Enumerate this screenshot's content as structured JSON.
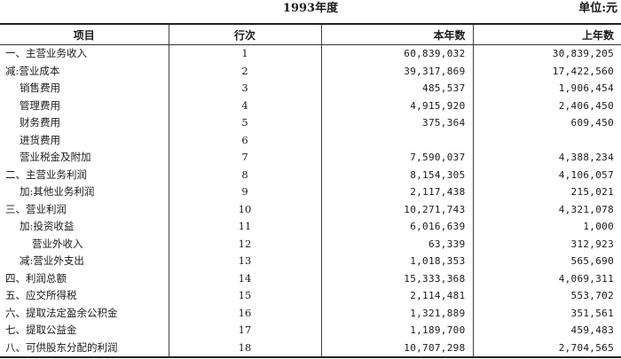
{
  "title": "1993年度",
  "unit": "单位:元",
  "headers": {
    "item": "项目",
    "line": "行次",
    "current": "本年数",
    "prior": "上年数"
  },
  "rows": [
    {
      "item": "一、主营业务收入",
      "indent": 0,
      "line": "1",
      "current": "60,839,032",
      "prior": "30,839,205"
    },
    {
      "item": "减:营业成本",
      "indent": 0,
      "line": "2",
      "current": "39,317,869",
      "prior": "17,422,560"
    },
    {
      "item": "销售费用",
      "indent": 1,
      "line": "3",
      "current": "485,537",
      "prior": "1,906,454"
    },
    {
      "item": "管理费用",
      "indent": 1,
      "line": "4",
      "current": "4,915,920",
      "prior": "2,406,450"
    },
    {
      "item": "财务费用",
      "indent": 1,
      "line": "5",
      "current": "375,364",
      "prior": "609,450"
    },
    {
      "item": "进货费用",
      "indent": 1,
      "line": "6",
      "current": "",
      "prior": ""
    },
    {
      "item": "营业税金及附加",
      "indent": 1,
      "line": "7",
      "current": "7,590,037",
      "prior": "4,388,234"
    },
    {
      "item": "二、主营业务利润",
      "indent": 0,
      "line": "8",
      "current": "8,154,305",
      "prior": "4,106,057"
    },
    {
      "item": "加:其他业务利润",
      "indent": 1,
      "line": "9",
      "current": "2,117,438",
      "prior": "215,021"
    },
    {
      "item": "三、营业利润",
      "indent": 0,
      "line": "10",
      "current": "10,271,743",
      "prior": "4,321,078"
    },
    {
      "item": "加:投资收益",
      "indent": 1,
      "line": "11",
      "current": "6,016,639",
      "prior": "1,000"
    },
    {
      "item": "营业外收入",
      "indent": 2,
      "line": "12",
      "current": "63,339",
      "prior": "312,923"
    },
    {
      "item": "减:营业外支出",
      "indent": 1,
      "line": "13",
      "current": "1,018,353",
      "prior": "565,690"
    },
    {
      "item": "四、利润总额",
      "indent": 0,
      "line": "14",
      "current": "15,333,368",
      "prior": "4,069,311"
    },
    {
      "item": "五、应交所得税",
      "indent": 0,
      "line": "15",
      "current": "2,114,481",
      "prior": "553,702"
    },
    {
      "item": "六、提取法定盈余公积金",
      "indent": 0,
      "line": "16",
      "current": "1,321,889",
      "prior": "351,561"
    },
    {
      "item": "七、提取公益金",
      "indent": 0,
      "line": "17",
      "current": "1,189,700",
      "prior": "459,483"
    },
    {
      "item": "八、可供股东分配的利润",
      "indent": 0,
      "line": "18",
      "current": "10,707,298",
      "prior": "2,704,565"
    }
  ]
}
